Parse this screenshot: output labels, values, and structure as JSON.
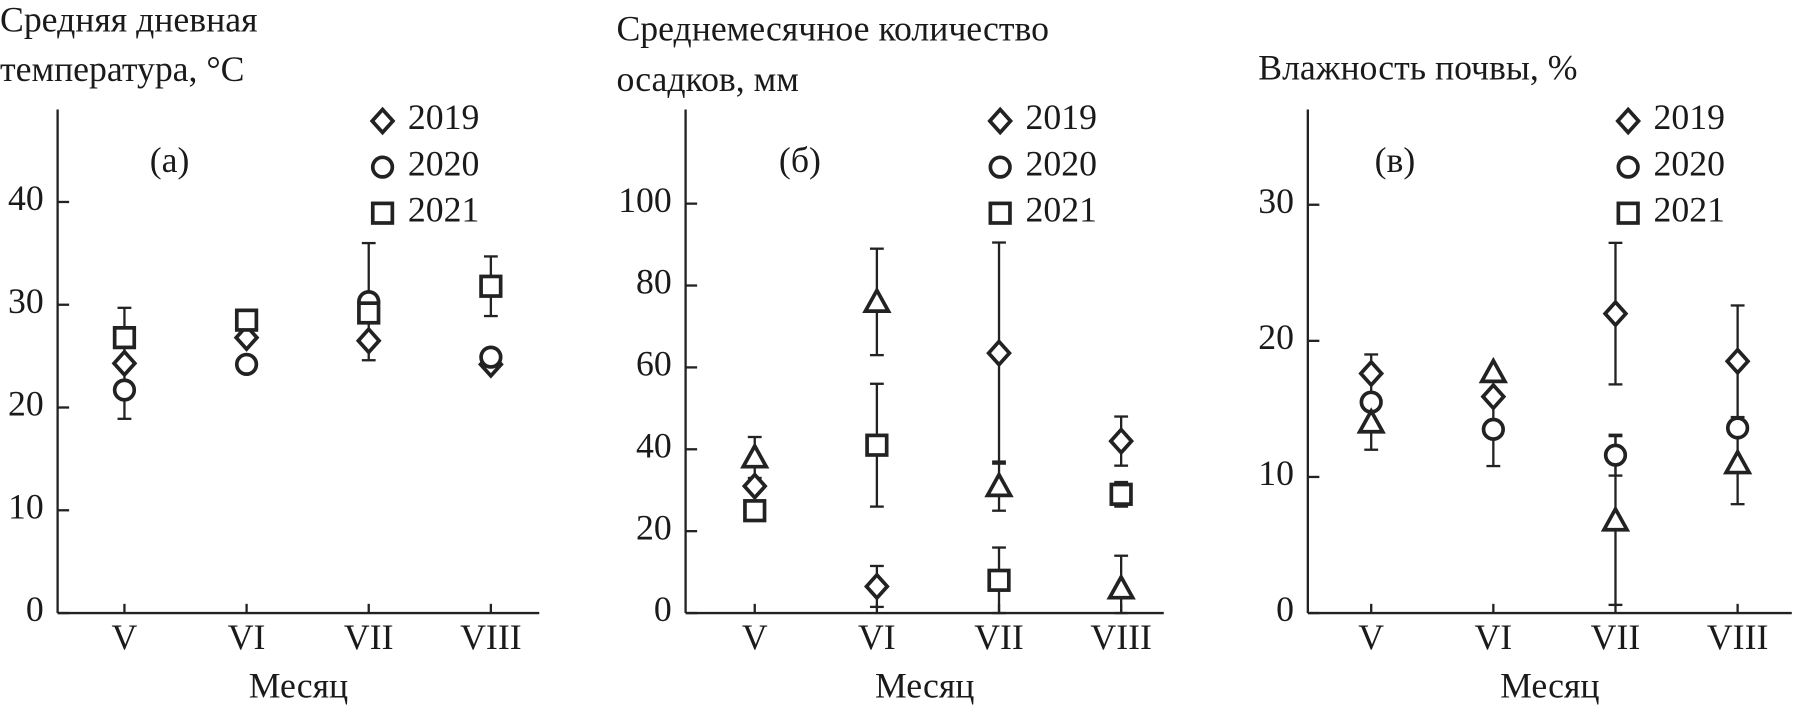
{
  "chart_data": [
    {
      "type": "scatter",
      "title": [
        "Средняя дневная",
        "температура, °C"
      ],
      "annotation": "(а)",
      "xlabel": "Месяц",
      "categories": [
        "V",
        "VI",
        "VII",
        "VIII"
      ],
      "ylim": [
        0,
        49
      ],
      "yticks": [
        0,
        10,
        20,
        30,
        40
      ],
      "color": "#222222",
      "series": [
        {
          "name": "2019",
          "marker": "diamond",
          "values": [
            24.3,
            26.8,
            26.5,
            24.2
          ],
          "errors": [
            5.4,
            null,
            null,
            null
          ]
        },
        {
          "name": "2020",
          "marker": "circle",
          "values": [
            21.7,
            24.2,
            30.3,
            24.9
          ],
          "errors": [
            null,
            null,
            5.7,
            null
          ]
        },
        {
          "name": "2021",
          "marker": "square",
          "values": [
            26.8,
            28.5,
            29.2,
            31.8
          ],
          "errors": [
            null,
            null,
            null,
            2.9
          ]
        }
      ]
    },
    {
      "type": "scatter",
      "title": [
        "Среднемесячное количество",
        "осадков, мм"
      ],
      "annotation": "(б)",
      "xlabel": "Месяц",
      "categories": [
        "V",
        "VI",
        "VII",
        "VIII"
      ],
      "ylim": [
        0,
        123
      ],
      "yticks": [
        0,
        20,
        40,
        60,
        80,
        100
      ],
      "color": "#222222",
      "series": [
        {
          "name": "2019",
          "marker": "diamond",
          "values": [
            31,
            6.5,
            63.5,
            42
          ],
          "errors": [
            null,
            5,
            27,
            6
          ]
        },
        {
          "name": "2020",
          "marker": "circle",
          "values": [
            null,
            null,
            null,
            null
          ],
          "errors": [
            null,
            null,
            null,
            null
          ]
        },
        {
          "name": "2021",
          "marker": "square",
          "values": [
            25,
            41,
            8,
            29
          ],
          "errors": [
            null,
            15,
            8,
            3
          ]
        },
        {
          "marker": "triangle",
          "values": [
            38,
            76,
            31,
            6
          ],
          "errors": [
            5,
            13,
            6,
            8
          ]
        }
      ]
    },
    {
      "type": "scatter",
      "title": [
        "Влажность почвы, %"
      ],
      "annotation": "(в)",
      "xlabel": "Месяц",
      "categories": [
        "V",
        "VI",
        "VII",
        "VIII"
      ],
      "ylim": [
        0,
        37
      ],
      "yticks": [
        0,
        10,
        20,
        30
      ],
      "color": "#222222",
      "series": [
        {
          "name": "2019",
          "marker": "diamond",
          "values": [
            17.6,
            15.9,
            22,
            18.5
          ],
          "errors": [
            null,
            null,
            5.2,
            4.1
          ]
        },
        {
          "name": "2020",
          "marker": "circle",
          "values": [
            15.5,
            13.5,
            11.6,
            13.6
          ],
          "errors": [
            3.5,
            2.7,
            1.5,
            null
          ]
        },
        {
          "name": "2021",
          "marker": "square",
          "values": [
            null,
            null,
            null,
            null
          ],
          "errors": [
            null,
            null,
            null,
            null
          ]
        },
        {
          "marker": "triangle",
          "values": [
            14,
            17.7,
            6.8,
            11
          ],
          "errors": [
            null,
            null,
            6.2,
            3
          ]
        }
      ]
    }
  ]
}
